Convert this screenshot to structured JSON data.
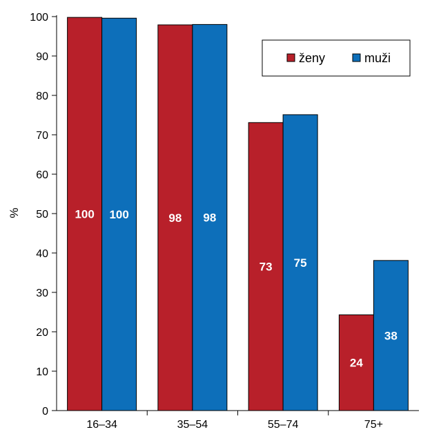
{
  "chart_data": {
    "type": "bar",
    "categories": [
      "16–34",
      "35–54",
      "55–74",
      "75+"
    ],
    "series": [
      {
        "name": "ženy",
        "color": "#b8202a",
        "values": [
          100,
          98,
          73,
          24
        ],
        "exact_values": [
          99.8,
          97.9,
          73.1,
          24.3
        ]
      },
      {
        "name": "muži",
        "color": "#0d6fba",
        "values": [
          100,
          98,
          75,
          38
        ],
        "exact_values": [
          99.6,
          98.0,
          75.1,
          38.1
        ]
      }
    ],
    "title": "",
    "xlabel": "",
    "ylabel": "%",
    "ylim": [
      0,
      100
    ],
    "yticks": [
      0,
      10,
      20,
      30,
      40,
      50,
      60,
      70,
      80,
      90,
      100
    ],
    "grid": false,
    "legend_position": "top-right"
  }
}
